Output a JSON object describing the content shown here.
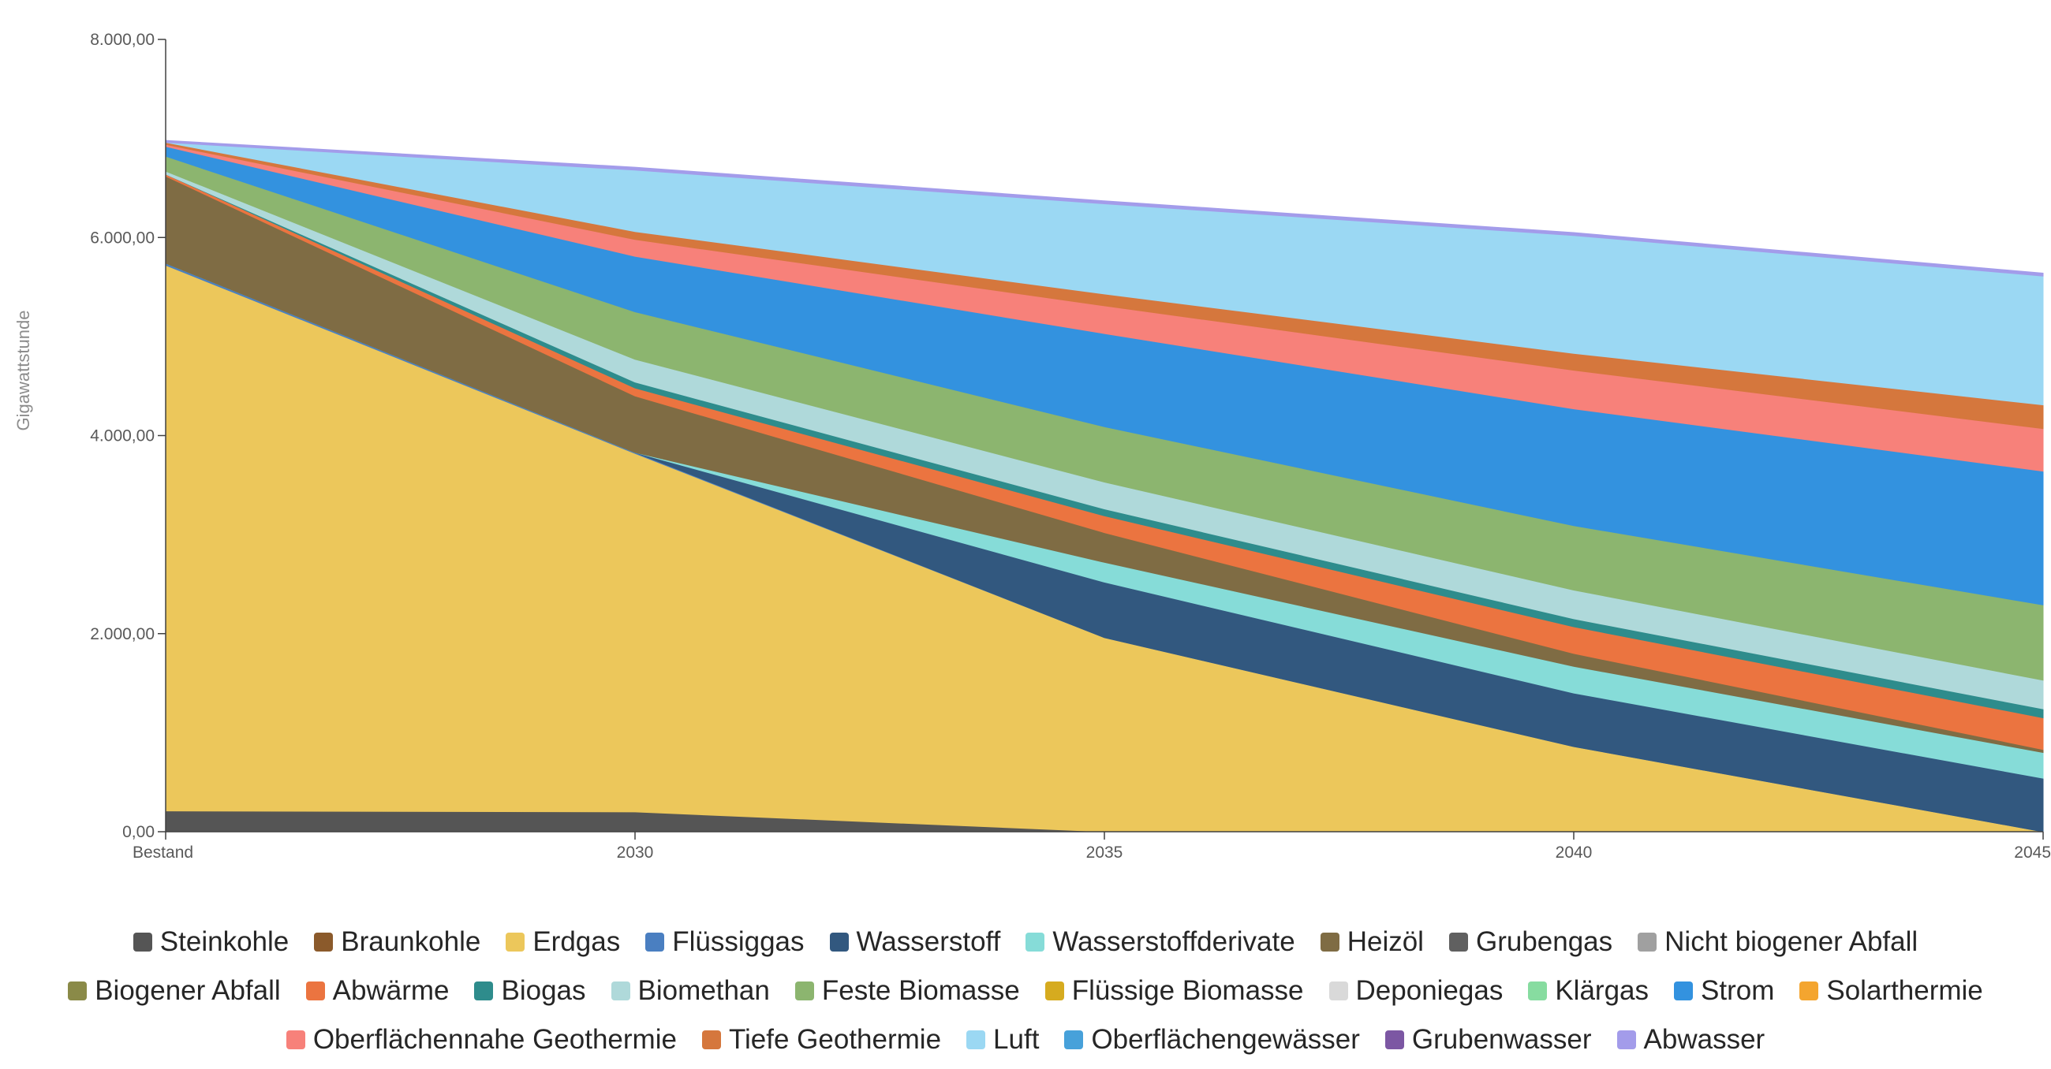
{
  "chart_data": {
    "type": "area",
    "stacked": true,
    "title": "",
    "xlabel": "",
    "ylabel": "Gigawattstunde",
    "categories": [
      "Bestand",
      "2030",
      "2035",
      "2040",
      "2045"
    ],
    "ylim": [
      0,
      8000
    ],
    "yticks": [
      0,
      2000,
      4000,
      6000,
      8000
    ],
    "ytick_labels": [
      "0,00",
      "2.000,00",
      "4.000,00",
      "6.000,00",
      "8.000,00"
    ],
    "grid": false,
    "legend_position": "bottom",
    "series": [
      {
        "name": "Steinkohle",
        "color": "#555555",
        "values": [
          210,
          200,
          0,
          0,
          0
        ]
      },
      {
        "name": "Braunkohle",
        "color": "#8b5a2b",
        "values": [
          0,
          0,
          0,
          0,
          0
        ]
      },
      {
        "name": "Erdgas",
        "color": "#ecc75b",
        "values": [
          5510,
          3620,
          1960,
          860,
          0
        ]
      },
      {
        "name": "Flüssiggas",
        "color": "#4a7fc1",
        "values": [
          20,
          10,
          0,
          0,
          0
        ]
      },
      {
        "name": "Wasserstoff",
        "color": "#32587f",
        "values": [
          0,
          0,
          560,
          540,
          540
        ]
      },
      {
        "name": "Wasserstoffderivate",
        "color": "#86dcd8",
        "values": [
          0,
          0,
          200,
          270,
          260
        ]
      },
      {
        "name": "Heizöl",
        "color": "#7f6c44",
        "values": [
          880,
          570,
          300,
          130,
          30
        ]
      },
      {
        "name": "Grubengas",
        "color": "#606060",
        "values": [
          0,
          0,
          0,
          0,
          0
        ]
      },
      {
        "name": "Nicht biogener Abfall",
        "color": "#a0a0a0",
        "values": [
          0,
          0,
          0,
          0,
          0
        ]
      },
      {
        "name": "Biogener Abfall",
        "color": "#8a8a48",
        "values": [
          0,
          0,
          0,
          0,
          0
        ]
      },
      {
        "name": "Abwärme",
        "color": "#eb7440",
        "values": [
          20,
          80,
          170,
          270,
          320
        ]
      },
      {
        "name": "Biogas",
        "color": "#2e8c8c",
        "values": [
          0,
          60,
          70,
          80,
          90
        ]
      },
      {
        "name": "Biomethan",
        "color": "#afd9da",
        "values": [
          30,
          230,
          270,
          290,
          290
        ]
      },
      {
        "name": "Feste Biomasse",
        "color": "#8cb56f",
        "values": [
          150,
          480,
          560,
          650,
          760
        ]
      },
      {
        "name": "Flüssige Biomasse",
        "color": "#d6ab1f",
        "values": [
          0,
          0,
          0,
          0,
          0
        ]
      },
      {
        "name": "Deponiegas",
        "color": "#d9d9d9",
        "values": [
          0,
          0,
          0,
          0,
          0
        ]
      },
      {
        "name": "Klärgas",
        "color": "#87dca0",
        "values": [
          0,
          0,
          0,
          0,
          0
        ]
      },
      {
        "name": "Strom",
        "color": "#3392df",
        "values": [
          100,
          560,
          940,
          1180,
          1350
        ]
      },
      {
        "name": "Solarthermie",
        "color": "#f4a52f",
        "values": [
          0,
          0,
          0,
          0,
          0
        ]
      },
      {
        "name": "Oberflächennahe Geothermie",
        "color": "#f7817a",
        "values": [
          20,
          170,
          280,
          390,
          430
        ]
      },
      {
        "name": "Tiefe Geothermie",
        "color": "#d5773d",
        "values": [
          20,
          80,
          120,
          170,
          240
        ]
      },
      {
        "name": "Luft",
        "color": "#9bd8f3",
        "values": [
          0,
          620,
          910,
          1190,
          1300
        ]
      },
      {
        "name": "Oberflächengewässer",
        "color": "#47a1da",
        "values": [
          0,
          0,
          0,
          0,
          0
        ]
      },
      {
        "name": "Grubenwasser",
        "color": "#7c57a3",
        "values": [
          0,
          0,
          0,
          0,
          0
        ]
      },
      {
        "name": "Abwasser",
        "color": "#a39cea",
        "values": [
          20,
          30,
          30,
          30,
          30
        ]
      }
    ]
  }
}
